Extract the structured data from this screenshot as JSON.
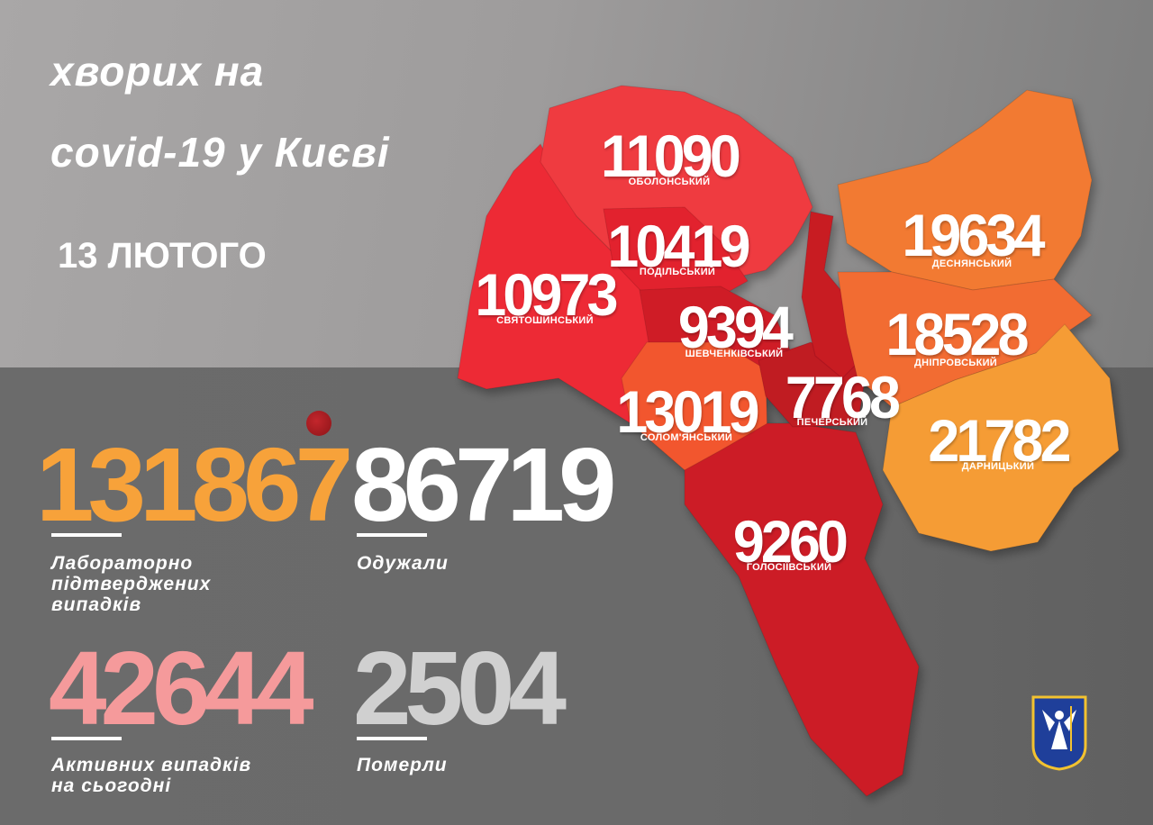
{
  "header": {
    "title_line1": "хворих на",
    "title_line2": "covid-19 у Києві",
    "date": "13 ЛЮТОГО"
  },
  "districts": [
    {
      "name": "ОБОЛОНСЬКИЙ",
      "value": "11090",
      "color": "#ef3a3f"
    },
    {
      "name": "ПОДІЛЬСЬКИЙ",
      "value": "10419",
      "color": "#e2222d"
    },
    {
      "name": "СВЯТОШИНСЬКИЙ",
      "value": "10973",
      "color": "#ed2b36"
    },
    {
      "name": "ШЕВЧЕНКІВСЬКИЙ",
      "value": "9394",
      "color": "#cf1e28"
    },
    {
      "name": "СОЛОМ'ЯНСЬКИЙ",
      "value": "13019",
      "color": "#f2562f"
    },
    {
      "name": "ПЕЧЕРСЬКИЙ",
      "value": "7768",
      "color": "#c01a24"
    },
    {
      "name": "ГОЛОСІЇВСЬКИЙ",
      "value": "9260",
      "color": "#cc1f26"
    },
    {
      "name": "ДЕСНЯНСЬКИЙ",
      "value": "19634",
      "color": "#f27a30"
    },
    {
      "name": "ДНІПРОВСЬКИЙ",
      "value": "18528",
      "color": "#f26c33"
    },
    {
      "name": "ДАРНИЦЬКИЙ",
      "value": "21782",
      "color": "#f59c36"
    }
  ],
  "stats": {
    "confirmed": {
      "value": "131867",
      "label_line1": "Лабораторно",
      "label_line2": "підтверджених",
      "label_line3": "випадків",
      "color": "#f7a23a"
    },
    "recovered": {
      "value": "86719",
      "label": "Одужали",
      "color": "#ffffff"
    },
    "active": {
      "value": "42644",
      "label_line1": "Активних випадків",
      "label_line2": "на сьогодні",
      "color": "#f59a9b"
    },
    "deaths": {
      "value": "2504",
      "label": "Померли",
      "color": "#d0d0d0"
    }
  },
  "icons": {
    "virus": "virus-icon",
    "emblem": "kyiv-coat-of-arms"
  }
}
